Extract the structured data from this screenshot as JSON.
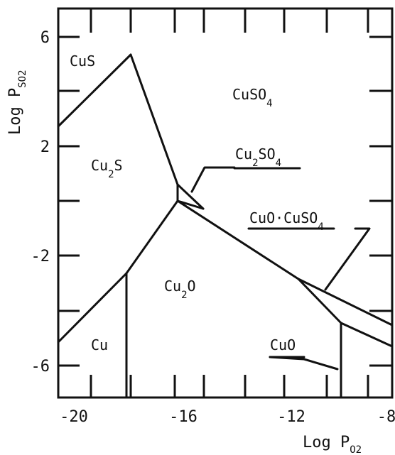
{
  "axes": {
    "x_label_main": "Log P",
    "x_label_sub": "O2",
    "y_label_main": "Log P",
    "y_label_sub": "SO2",
    "x_ticks": [
      "-20",
      "-16",
      "-12",
      "-8"
    ],
    "y_ticks": [
      "6",
      "2",
      "-2",
      "-6"
    ]
  },
  "regions": {
    "cus": "CuS",
    "cuso4_main": "CuSO",
    "cuso4_sub": "4",
    "cu2s_a": "Cu",
    "cu2s_sub": "2",
    "cu2s_b": "S",
    "cu2so4_a": "Cu",
    "cu2so4_sub1": "2",
    "cu2so4_b": "SO",
    "cu2so4_sub2": "4",
    "basic_main": "CuO·CuSO",
    "basic_sub": "4",
    "cu2o_a": "Cu",
    "cu2o_sub": "2",
    "cu2o_b": "O",
    "cu": "Cu",
    "cuo": "CuO"
  },
  "chart_data": {
    "type": "phase-diagram",
    "xlabel": "Log P O2",
    "ylabel": "Log P SO2",
    "xlim": [
      -20,
      -8
    ],
    "ylim": [
      -7,
      7
    ],
    "phase_regions": [
      "CuS",
      "CuSO4",
      "Cu2S",
      "Cu2SO4",
      "CuO·CuSO4",
      "Cu2O",
      "Cu",
      "CuO"
    ]
  }
}
